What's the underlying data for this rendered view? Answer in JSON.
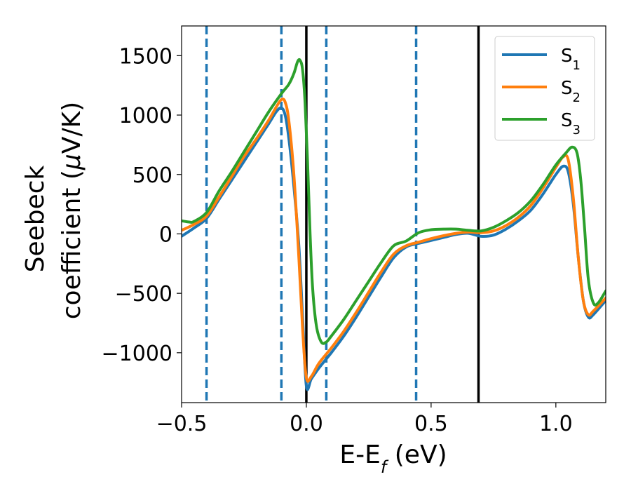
{
  "chart_data": {
    "type": "line",
    "title": "",
    "xlabel": "E-E",
    "xlabel_sub": "f",
    "xlabel_unit": " (eV)",
    "ylabel_line1": "Seebeck",
    "ylabel_line2_pre": "coefficient  (",
    "ylabel_mu": "μ",
    "ylabel_line2_post": "V/K)",
    "xlim": [
      -0.5,
      1.2
    ],
    "ylim": [
      -1420,
      1750
    ],
    "xticks": [
      -0.5,
      0.0,
      0.5,
      1.0
    ],
    "xtick_labels": [
      "−0.5",
      "0.0",
      "0.5",
      "1.0"
    ],
    "yticks": [
      -1000,
      -500,
      0,
      500,
      1000,
      1500
    ],
    "ytick_labels": [
      "−1000",
      "−500",
      "0",
      "500",
      "1000",
      "1500"
    ],
    "grid": false,
    "legend_position": "top-right",
    "vlines_dashed": {
      "color": "#1f77b4",
      "x": [
        -0.4,
        -0.1,
        0.08,
        0.44
      ]
    },
    "vlines_solid": {
      "color": "#000000",
      "x": [
        0.0,
        0.69
      ]
    },
    "series": [
      {
        "name": "S",
        "name_sub": "1",
        "color": "#1f77b4",
        "points": [
          [
            -0.5,
            -20
          ],
          [
            -0.45,
            50
          ],
          [
            -0.4,
            130
          ],
          [
            -0.35,
            290
          ],
          [
            -0.3,
            450
          ],
          [
            -0.25,
            610
          ],
          [
            -0.2,
            770
          ],
          [
            -0.15,
            930
          ],
          [
            -0.12,
            1030
          ],
          [
            -0.1,
            1060
          ],
          [
            -0.085,
            1000
          ],
          [
            -0.07,
            800
          ],
          [
            -0.05,
            400
          ],
          [
            -0.03,
            -100
          ],
          [
            -0.015,
            -700
          ],
          [
            0.0,
            -1280
          ],
          [
            0.02,
            -1220
          ],
          [
            0.05,
            -1130
          ],
          [
            0.1,
            -1000
          ],
          [
            0.15,
            -860
          ],
          [
            0.2,
            -700
          ],
          [
            0.25,
            -530
          ],
          [
            0.3,
            -360
          ],
          [
            0.35,
            -200
          ],
          [
            0.4,
            -110
          ],
          [
            0.45,
            -80
          ],
          [
            0.5,
            -55
          ],
          [
            0.55,
            -30
          ],
          [
            0.6,
            -5
          ],
          [
            0.65,
            5
          ],
          [
            0.7,
            -20
          ],
          [
            0.75,
            -10
          ],
          [
            0.8,
            40
          ],
          [
            0.85,
            110
          ],
          [
            0.9,
            200
          ],
          [
            0.95,
            340
          ],
          [
            1.0,
            500
          ],
          [
            1.03,
            570
          ],
          [
            1.05,
            520
          ],
          [
            1.07,
            250
          ],
          [
            1.09,
            -200
          ],
          [
            1.11,
            -560
          ],
          [
            1.13,
            -700
          ],
          [
            1.15,
            -680
          ],
          [
            1.2,
            -560
          ]
        ]
      },
      {
        "name": "S",
        "name_sub": "2",
        "color": "#ff7f0e",
        "points": [
          [
            -0.5,
            30
          ],
          [
            -0.45,
            80
          ],
          [
            -0.4,
            150
          ],
          [
            -0.35,
            310
          ],
          [
            -0.3,
            480
          ],
          [
            -0.25,
            650
          ],
          [
            -0.2,
            800
          ],
          [
            -0.15,
            960
          ],
          [
            -0.12,
            1070
          ],
          [
            -0.1,
            1130
          ],
          [
            -0.085,
            1110
          ],
          [
            -0.07,
            950
          ],
          [
            -0.05,
            500
          ],
          [
            -0.03,
            -200
          ],
          [
            -0.015,
            -800
          ],
          [
            0.0,
            -1210
          ],
          [
            0.02,
            -1200
          ],
          [
            0.05,
            -1090
          ],
          [
            0.1,
            -960
          ],
          [
            0.15,
            -820
          ],
          [
            0.2,
            -660
          ],
          [
            0.25,
            -490
          ],
          [
            0.3,
            -320
          ],
          [
            0.35,
            -170
          ],
          [
            0.4,
            -100
          ],
          [
            0.45,
            -70
          ],
          [
            0.5,
            -40
          ],
          [
            0.55,
            -15
          ],
          [
            0.6,
            5
          ],
          [
            0.65,
            15
          ],
          [
            0.7,
            10
          ],
          [
            0.75,
            25
          ],
          [
            0.8,
            70
          ],
          [
            0.85,
            140
          ],
          [
            0.9,
            240
          ],
          [
            0.95,
            390
          ],
          [
            1.0,
            560
          ],
          [
            1.03,
            650
          ],
          [
            1.05,
            620
          ],
          [
            1.07,
            300
          ],
          [
            1.09,
            -200
          ],
          [
            1.11,
            -560
          ],
          [
            1.13,
            -680
          ],
          [
            1.15,
            -650
          ],
          [
            1.2,
            -540
          ]
        ]
      },
      {
        "name": "S",
        "name_sub": "3",
        "color": "#2ca02c",
        "points": [
          [
            -0.5,
            110
          ],
          [
            -0.47,
            100
          ],
          [
            -0.45,
            105
          ],
          [
            -0.4,
            180
          ],
          [
            -0.35,
            360
          ],
          [
            -0.3,
            520
          ],
          [
            -0.25,
            690
          ],
          [
            -0.2,
            860
          ],
          [
            -0.15,
            1030
          ],
          [
            -0.1,
            1180
          ],
          [
            -0.07,
            1260
          ],
          [
            -0.05,
            1350
          ],
          [
            -0.035,
            1450
          ],
          [
            -0.025,
            1460
          ],
          [
            -0.015,
            1380
          ],
          [
            -0.005,
            1100
          ],
          [
            0.005,
            600
          ],
          [
            0.015,
            0
          ],
          [
            0.025,
            -450
          ],
          [
            0.04,
            -770
          ],
          [
            0.06,
            -910
          ],
          [
            0.08,
            -910
          ],
          [
            0.1,
            -860
          ],
          [
            0.15,
            -720
          ],
          [
            0.2,
            -560
          ],
          [
            0.25,
            -400
          ],
          [
            0.3,
            -240
          ],
          [
            0.35,
            -100
          ],
          [
            0.4,
            -60
          ],
          [
            0.45,
            10
          ],
          [
            0.5,
            35
          ],
          [
            0.55,
            40
          ],
          [
            0.6,
            40
          ],
          [
            0.65,
            30
          ],
          [
            0.7,
            25
          ],
          [
            0.75,
            55
          ],
          [
            0.8,
            110
          ],
          [
            0.85,
            180
          ],
          [
            0.9,
            280
          ],
          [
            0.95,
            420
          ],
          [
            1.0,
            580
          ],
          [
            1.04,
            680
          ],
          [
            1.065,
            730
          ],
          [
            1.085,
            680
          ],
          [
            1.1,
            450
          ],
          [
            1.115,
            50
          ],
          [
            1.13,
            -380
          ],
          [
            1.15,
            -580
          ],
          [
            1.17,
            -580
          ],
          [
            1.2,
            -480
          ]
        ]
      }
    ]
  }
}
